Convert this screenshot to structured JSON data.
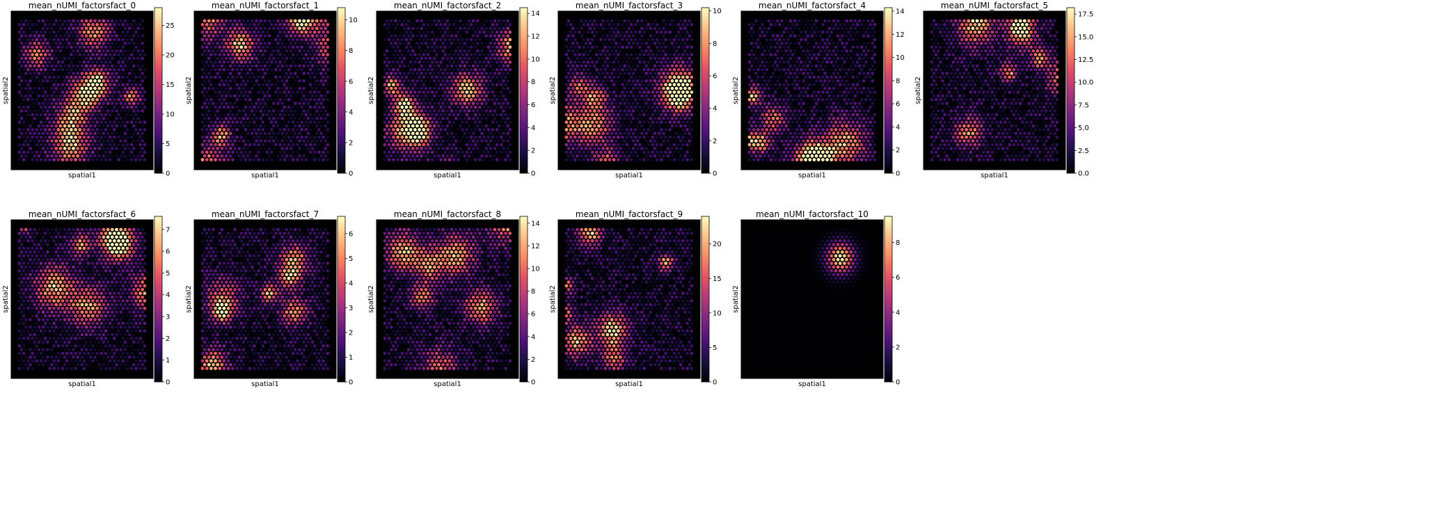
{
  "figure": {
    "panels": [
      {
        "title": "mean_nUMI_factorsfact_0",
        "ticks": [
          "0",
          "5",
          "10",
          "15",
          "20",
          "25"
        ],
        "seed": 11
      },
      {
        "title": "mean_nUMI_factorsfact_1",
        "ticks": [
          "0",
          "2",
          "4",
          "6",
          "8",
          "10"
        ],
        "seed": 23
      },
      {
        "title": "mean_nUMI_factorsfact_2",
        "ticks": [
          "0",
          "2",
          "4",
          "6",
          "8",
          "10",
          "12",
          "14"
        ],
        "seed": 37
      },
      {
        "title": "mean_nUMI_factorsfact_3",
        "ticks": [
          "0",
          "2",
          "4",
          "6",
          "8",
          "10"
        ],
        "seed": 41
      },
      {
        "title": "mean_nUMI_factorsfact_4",
        "ticks": [
          "0",
          "2",
          "4",
          "6",
          "8",
          "10",
          "12",
          "14"
        ],
        "seed": 53
      },
      {
        "title": "mean_nUMI_factorsfact_5",
        "ticks": [
          "0.0",
          "2.5",
          "5.0",
          "7.5",
          "10.0",
          "12.5",
          "15.0",
          "17.5"
        ],
        "seed": 67
      },
      {
        "title": "mean_nUMI_factorsfact_6",
        "ticks": [
          "0",
          "1",
          "2",
          "3",
          "4",
          "5",
          "6",
          "7"
        ],
        "seed": 71
      },
      {
        "title": "mean_nUMI_factorsfact_7",
        "ticks": [
          "0",
          "1",
          "2",
          "3",
          "4",
          "5",
          "6"
        ],
        "seed": 83
      },
      {
        "title": "mean_nUMI_factorsfact_8",
        "ticks": [
          "0",
          "2",
          "4",
          "6",
          "8",
          "10",
          "12",
          "14"
        ],
        "seed": 97
      },
      {
        "title": "mean_nUMI_factorsfact_9",
        "ticks": [
          "0",
          "5",
          "10",
          "15",
          "20"
        ],
        "seed": 101
      },
      {
        "title": "mean_nUMI_factorsfact_10",
        "ticks": [
          "0",
          "2",
          "4",
          "6",
          "8"
        ],
        "seed": 113
      }
    ]
  },
  "chart_data": {
    "type": "heatmap",
    "description": "Spatial hexagonal spot maps, one panel per factor, colored with magma colormap",
    "xlabel": "spatial1",
    "ylabel": "spatial2",
    "colormap": "magma",
    "background": "#000000",
    "panels": [
      {
        "title": "mean_nUMI_factorsfact_0",
        "colorbar_range": [
          0,
          28
        ],
        "colorbar_ticks": [
          0,
          5,
          10,
          15,
          20,
          25
        ]
      },
      {
        "title": "mean_nUMI_factorsfact_1",
        "colorbar_range": [
          0,
          10.8
        ],
        "colorbar_ticks": [
          0,
          2,
          4,
          6,
          8,
          10
        ]
      },
      {
        "title": "mean_nUMI_factorsfact_2",
        "colorbar_range": [
          0,
          14.5
        ],
        "colorbar_ticks": [
          0,
          2,
          4,
          6,
          8,
          10,
          12,
          14
        ]
      },
      {
        "title": "mean_nUMI_factorsfact_3",
        "colorbar_range": [
          0,
          10.2
        ],
        "colorbar_ticks": [
          0,
          2,
          4,
          6,
          8,
          10
        ]
      },
      {
        "title": "mean_nUMI_factorsfact_4",
        "colorbar_range": [
          0,
          14.3
        ],
        "colorbar_ticks": [
          0,
          2,
          4,
          6,
          8,
          10,
          12,
          14
        ]
      },
      {
        "title": "mean_nUMI_factorsfact_5",
        "colorbar_range": [
          0,
          18.2
        ],
        "colorbar_ticks": [
          0.0,
          2.5,
          5.0,
          7.5,
          10.0,
          12.5,
          15.0,
          17.5
        ]
      },
      {
        "title": "mean_nUMI_factorsfact_6",
        "colorbar_range": [
          0,
          7.6
        ],
        "colorbar_ticks": [
          0,
          1,
          2,
          3,
          4,
          5,
          6,
          7
        ]
      },
      {
        "title": "mean_nUMI_factorsfact_7",
        "colorbar_range": [
          0,
          6.7
        ],
        "colorbar_ticks": [
          0,
          1,
          2,
          3,
          4,
          5,
          6
        ]
      },
      {
        "title": "mean_nUMI_factorsfact_8",
        "colorbar_range": [
          0,
          14.6
        ],
        "colorbar_ticks": [
          0,
          2,
          4,
          6,
          8,
          10,
          12,
          14
        ]
      },
      {
        "title": "mean_nUMI_factorsfact_9",
        "colorbar_range": [
          0,
          24
        ],
        "colorbar_ticks": [
          0,
          5,
          10,
          15,
          20
        ]
      },
      {
        "title": "mean_nUMI_factorsfact_10",
        "colorbar_range": [
          0,
          9.5
        ],
        "colorbar_ticks": [
          0,
          2,
          4,
          6,
          8
        ]
      }
    ]
  }
}
